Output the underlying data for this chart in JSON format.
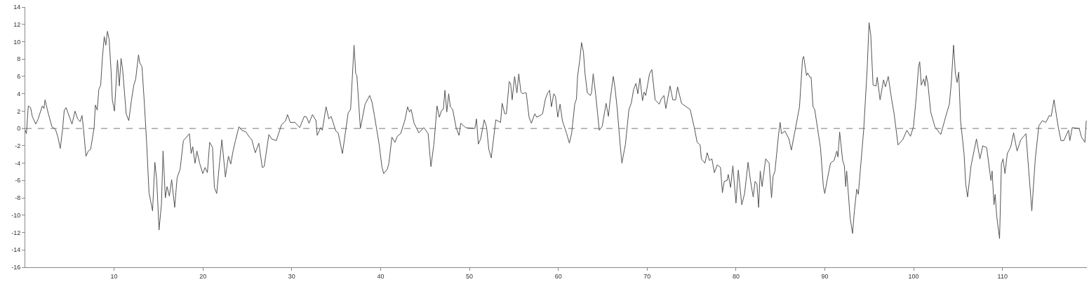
{
  "chart_data": {
    "type": "line",
    "x": [
      0,
      0.13,
      0.34,
      0.6,
      0.79,
      1.18,
      1.45,
      1.92,
      2.1,
      2.23,
      2.5,
      3.0,
      3.4,
      3.68,
      3.94,
      4.2,
      4.39,
      4.6,
      5.26,
      5.6,
      5.9,
      6.18,
      6.39,
      6.57,
      6.83,
      7.1,
      7.36,
      7.75,
      7.89,
      8.1,
      8.28,
      8.49,
      8.68,
      8.89,
      9.07,
      9.25,
      9.44,
      9.65,
      9.8,
      10.04,
      10.38,
      10.59,
      10.78,
      10.96,
      11.36,
      11.65,
      11.96,
      12.22,
      12.43,
      12.75,
      12.88,
      13.14,
      13.4,
      13.67,
      13.93,
      14.33,
      14.59,
      14.8,
      15.06,
      15.33,
      15.51,
      15.77,
      15.96,
      16.22,
      16.48,
      16.82,
      17.09,
      17.43,
      17.8,
      18.48,
      18.67,
      18.85,
      19.11,
      19.32,
      19.63,
      19.98,
      20.24,
      20.5,
      20.76,
      21.08,
      21.29,
      21.55,
      21.82,
      22.13,
      22.53,
      22.87,
      23.13,
      23.39,
      23.66,
      24.05,
      24.37,
      24.84,
      25.23,
      25.5,
      25.89,
      26.29,
      26.68,
      26.89,
      27.42,
      27.73,
      28.26,
      28.83,
      29.31,
      29.52,
      29.83,
      30.36,
      30.89,
      31.41,
      31.67,
      31.94,
      32.33,
      32.73,
      32.86,
      33.25,
      33.44,
      33.86,
      34.17,
      34.43,
      34.96,
      35.22,
      35.7,
      36.35,
      36.62,
      37.01,
      37.2,
      37.33,
      37.72,
      38.25,
      38.77,
      39.04,
      39.3,
      39.83,
      40.14,
      40.35,
      40.75,
      40.93,
      41.27,
      41.62,
      41.88,
      42.25,
      42.72,
      43.04,
      43.25,
      43.43,
      43.77,
      44.3,
      44.88,
      45.35,
      45.66,
      46.0,
      46.35,
      46.61,
      46.87,
      47.06,
      47.24,
      47.45,
      47.66,
      47.85,
      48.11,
      48.5,
      48.82,
      49.03,
      49.56,
      50.61,
      50.79,
      51.0,
      51.26,
      51.66,
      51.92,
      52.18,
      52.45,
      52.97,
      53.5,
      53.68,
      53.97,
      54.16,
      54.47,
      54.63,
      54.81,
      55.08,
      55.34,
      55.55,
      55.79,
      56.0,
      56.18,
      56.39,
      56.71,
      56.97,
      57.36,
      57.57,
      57.97,
      58.23,
      58.55,
      58.81,
      59.02,
      59.23,
      59.49,
      59.68,
      59.94,
      60.2,
      60.46,
      60.91,
      61.25,
      61.51,
      61.85,
      62.04,
      62.17,
      62.43,
      62.62,
      62.83,
      63.01,
      63.27,
      63.62,
      63.75,
      63.93,
      64.22,
      64.61,
      64.93,
      65.38,
      65.64,
      65.85,
      66.19,
      66.37,
      66.64,
      66.95,
      67.16,
      67.56,
      67.95,
      68.21,
      68.48,
      68.74,
      68.95,
      69.19,
      69.48,
      69.66,
      69.84,
      70.27,
      70.53,
      70.9,
      71.37,
      71.58,
      71.89,
      72.1,
      72.58,
      72.89,
      73.21,
      73.42,
      73.87,
      74.39,
      74.84,
      75.31,
      75.63,
      75.97,
      76.1,
      76.5,
      76.76,
      77.02,
      77.29,
      77.57,
      77.89,
      78.26,
      78.47,
      78.68,
      79.0,
      79.13,
      79.39,
      79.65,
      80.0,
      80.26,
      80.65,
      80.97,
      81.36,
      81.63,
      81.94,
      82.15,
      82.36,
      82.55,
      82.73,
      82.94,
      83.34,
      83.73,
      84.0,
      84.18,
      84.39,
      84.78,
      84.97,
      85.12,
      85.52,
      85.96,
      86.23,
      86.62,
      87.15,
      87.49,
      87.62,
      87.94,
      88.07,
      88.33,
      88.46,
      88.67,
      88.86,
      89.51,
      89.83,
      89.99,
      90.35,
      90.64,
      91.04,
      91.35,
      91.48,
      91.67,
      92.01,
      92.2,
      92.35,
      92.46,
      92.85,
      93.12,
      93.33,
      93.59,
      93.77,
      94.38,
      94.77,
      94.98,
      95.17,
      95.43,
      95.77,
      95.9,
      96.22,
      96.61,
      96.82,
      97.14,
      97.53,
      97.8,
      98.24,
      98.77,
      99.24,
      99.64,
      99.98,
      100.29,
      100.55,
      100.68,
      100.86,
      101.13,
      101.28,
      101.42,
      101.6,
      101.92,
      102.39,
      103.05,
      103.7,
      104.02,
      104.23,
      104.49,
      104.7,
      104.89,
      105.07,
      105.28,
      105.68,
      105.86,
      106.07,
      106.46,
      107.07,
      107.46,
      107.78,
      108.22,
      108.7,
      108.83,
      109.04,
      109.17,
      109.36,
      109.67,
      109.88,
      110.06,
      110.28,
      110.54,
      110.93,
      111.25,
      111.64,
      112.06,
      112.64,
      113.3,
      113.69,
      114.09,
      114.48,
      114.88,
      115.27,
      115.48,
      115.8,
      116.27,
      116.58,
      116.9,
      117.43,
      117.58,
      117.85,
      118.63,
      118.9,
      119.27,
      119.43
    ],
    "series": [
      {
        "color": "#555555",
        "values": [
          -0.2,
          -0.6,
          2.6,
          2.4,
          1.4,
          0.5,
          1.1,
          2.6,
          2.3,
          3.3,
          2.1,
          0.2,
          -0.1,
          -1.0,
          -2.3,
          -0.1,
          2.1,
          2.4,
          0.5,
          2.0,
          1.1,
          0.8,
          1.5,
          -0.2,
          -3.2,
          -2.6,
          -2.4,
          0.1,
          2.7,
          2.1,
          4.5,
          5.0,
          8.1,
          10.6,
          9.6,
          11.2,
          10.3,
          6.8,
          3.3,
          2.0,
          7.9,
          4.9,
          8.1,
          6.8,
          1.7,
          0.9,
          3.3,
          5.0,
          5.7,
          8.5,
          7.6,
          7.1,
          3.0,
          -1.8,
          -7.4,
          -9.5,
          -3.9,
          -6.0,
          -11.7,
          -8.7,
          -2.6,
          -8.0,
          -6.7,
          -7.8,
          -5.9,
          -9.1,
          -5.7,
          -4.7,
          -1.4,
          -0.6,
          -2.9,
          -2.1,
          -4.0,
          -2.6,
          -4.0,
          -5.2,
          -4.5,
          -5.1,
          -1.6,
          -2.2,
          -6.8,
          -7.5,
          -4.5,
          -1.3,
          -5.6,
          -3.2,
          -4.1,
          -2.6,
          -1.4,
          0.2,
          -0.2,
          -0.4,
          -1.0,
          -1.3,
          -2.8,
          -1.7,
          -4.5,
          -4.4,
          -0.7,
          -1.2,
          -1.4,
          0.4,
          0.9,
          1.6,
          0.7,
          0.7,
          0.1,
          1.4,
          1.3,
          0.6,
          1.6,
          0.9,
          -0.8,
          0.1,
          -0.2,
          2.5,
          1.1,
          1.4,
          -0.3,
          -0.5,
          -2.9,
          1.8,
          2.2,
          9.6,
          6.3,
          6.1,
          0,
          2.8,
          3.8,
          3.0,
          1.5,
          -1.8,
          -4.4,
          -5.2,
          -4.7,
          -4.0,
          -1.0,
          -1.6,
          -0.9,
          -0.6,
          0.9,
          2.5,
          1.9,
          2.2,
          0.6,
          -0.5,
          0.1,
          -0.6,
          -4.4,
          -1.8,
          2.6,
          1.3,
          2.1,
          2.2,
          4.4,
          1.9,
          4.0,
          2.5,
          2.2,
          0.1,
          -0.8,
          0.6,
          0.1,
          0,
          1.1,
          -1.8,
          -1.2,
          1.0,
          0.2,
          -2.4,
          -3.4,
          1.0,
          0.7,
          2.9,
          1.7,
          1.7,
          5.4,
          5.2,
          3.3,
          6.0,
          4.1,
          6.3,
          4.2,
          4.0,
          4.1,
          4.1,
          1.3,
          0.6,
          1.7,
          1.3,
          1.5,
          1.7,
          3.4,
          4.1,
          4.4,
          2.5,
          4.0,
          3.7,
          1.3,
          2.8,
          0.9,
          -0.5,
          -1.7,
          -0.5,
          2.8,
          3.4,
          6.0,
          8.0,
          9.9,
          8.8,
          6.3,
          4.1,
          3.8,
          4.2,
          6.3,
          3.8,
          -0.2,
          0.2,
          2.9,
          1.4,
          3.4,
          6.0,
          4.8,
          2.2,
          -1.7,
          -4.0,
          -1.8,
          2.2,
          2.9,
          4.5,
          5.2,
          4.0,
          5.8,
          3.2,
          4.2,
          3.8,
          6.3,
          6.8,
          3.3,
          2.8,
          3.4,
          3.8,
          2.3,
          4.9,
          3.3,
          3.3,
          4.8,
          2.9,
          2.5,
          2.2,
          0.1,
          -1.6,
          -1.9,
          -3.5,
          -4.0,
          -2.8,
          -3.7,
          -3.5,
          -5.1,
          -4.2,
          -4.5,
          -7.4,
          -6.1,
          -6.0,
          -5.3,
          -6.8,
          -4.3,
          -8.6,
          -4.8,
          -8.8,
          -7.5,
          -3.9,
          -6.0,
          -7.9,
          -6.1,
          -6.4,
          -9.1,
          -4.9,
          -6.7,
          -3.5,
          -4.0,
          -8.0,
          -5.5,
          -4.9,
          -0.8,
          0.7,
          -0.6,
          -0.3,
          -1.2,
          -2.5,
          -0.4,
          2.5,
          8.0,
          8.3,
          6.1,
          6.4,
          5.9,
          5.9,
          2.5,
          2.2,
          -2.2,
          -6.6,
          -7.5,
          -5.5,
          -4.0,
          -3.7,
          -2.6,
          -3.3,
          -0.4,
          -3.7,
          -4.3,
          -6.7,
          -4.9,
          -10.3,
          -12.1,
          -9.5,
          -7.0,
          -7.6,
          -0.1,
          6.9,
          12.2,
          10.8,
          5.0,
          4.9,
          5.9,
          3.3,
          5.6,
          4.8,
          6.0,
          3.3,
          1.7,
          -1.9,
          -1.3,
          -0.2,
          -0.9,
          0.2,
          3.6,
          7.1,
          7.7,
          5.0,
          5.7,
          4.9,
          6.1,
          5.2,
          1.9,
          0.2,
          -0.7,
          1.7,
          2.8,
          5.2,
          9.6,
          6.3,
          5.3,
          6.5,
          0.9,
          -3.0,
          -6.4,
          -7.9,
          -4.3,
          -1.2,
          -3.5,
          -2.0,
          -2.2,
          -6.0,
          -4.9,
          -8.8,
          -7.6,
          -10.2,
          -12.7,
          -4.1,
          -3.5,
          -5.2,
          -2.9,
          -2.1,
          -0.5,
          -2.6,
          -1.3,
          -0.6,
          -9.5,
          -3.5,
          0.3,
          0.9,
          0.7,
          1.5,
          1.4,
          3.3,
          0.2,
          -1.4,
          -1.4,
          -0.2,
          -1.4,
          0.1,
          0,
          -1.0,
          -1.6,
          0.9
        ]
      }
    ],
    "xlim": [
      0,
      119.5
    ],
    "xticks": [
      10,
      20,
      30,
      40,
      50,
      60,
      70,
      80,
      90,
      100,
      110
    ],
    "ylim": [
      -16,
      14
    ],
    "yticks": [
      -16,
      -14,
      -12,
      -10,
      -8,
      -6,
      -4,
      -2,
      0,
      2,
      4,
      6,
      8,
      10,
      12,
      14
    ],
    "ref_lines": [
      {
        "axis": "y",
        "value": 0,
        "color": "#777777",
        "line_style": "dashed"
      }
    ],
    "grid": false,
    "marker": "none",
    "line_style": "solid"
  }
}
